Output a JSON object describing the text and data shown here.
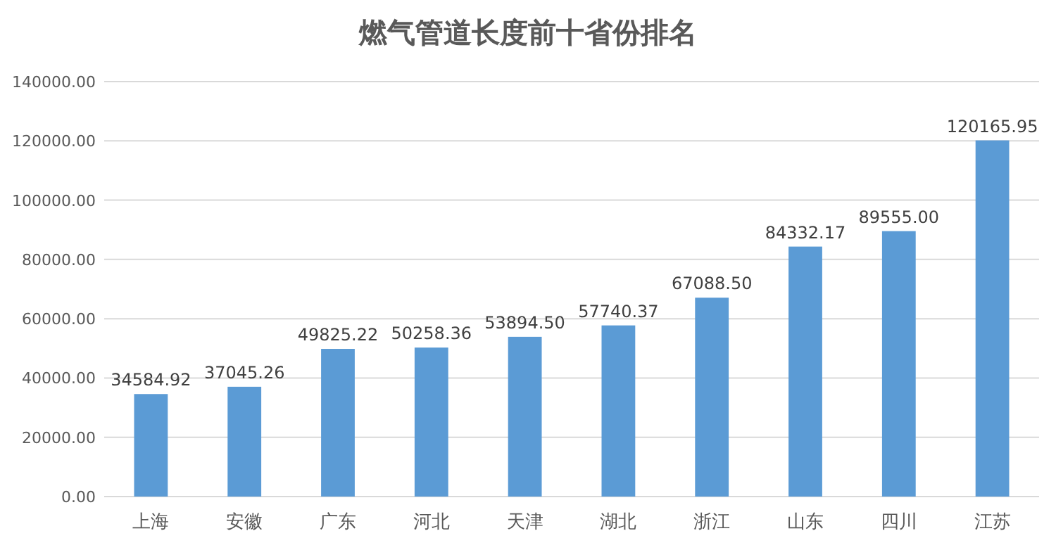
{
  "chart_data": {
    "type": "bar",
    "title": "燃气管道长度前十省份排名",
    "categories": [
      "上海",
      "安徽",
      "广东",
      "河北",
      "天津",
      "湖北",
      "浙江",
      "山东",
      "四川",
      "江苏"
    ],
    "values": [
      34584.92,
      37045.26,
      49825.22,
      50258.36,
      53894.5,
      57740.37,
      67088.5,
      84332.17,
      89555.0,
      120165.95
    ],
    "value_labels": [
      "34584.92",
      "37045.26",
      "49825.22",
      "50258.36",
      "53894.50",
      "57740.37",
      "67088.50",
      "84332.17",
      "89555.00",
      "120165.95"
    ],
    "color": "#5b9bd5",
    "ylim": [
      0,
      140000
    ],
    "yticks": [
      {
        "value": 0,
        "label": "0.00"
      },
      {
        "value": 20000,
        "label": "20000.00"
      },
      {
        "value": 40000,
        "label": "40000.00"
      },
      {
        "value": 60000,
        "label": "60000.00"
      },
      {
        "value": 80000,
        "label": "80000.00"
      },
      {
        "value": 100000,
        "label": "100000.00"
      },
      {
        "value": 120000,
        "label": "120000.00"
      },
      {
        "value": 140000,
        "label": "140000.00"
      }
    ],
    "grid": true
  }
}
